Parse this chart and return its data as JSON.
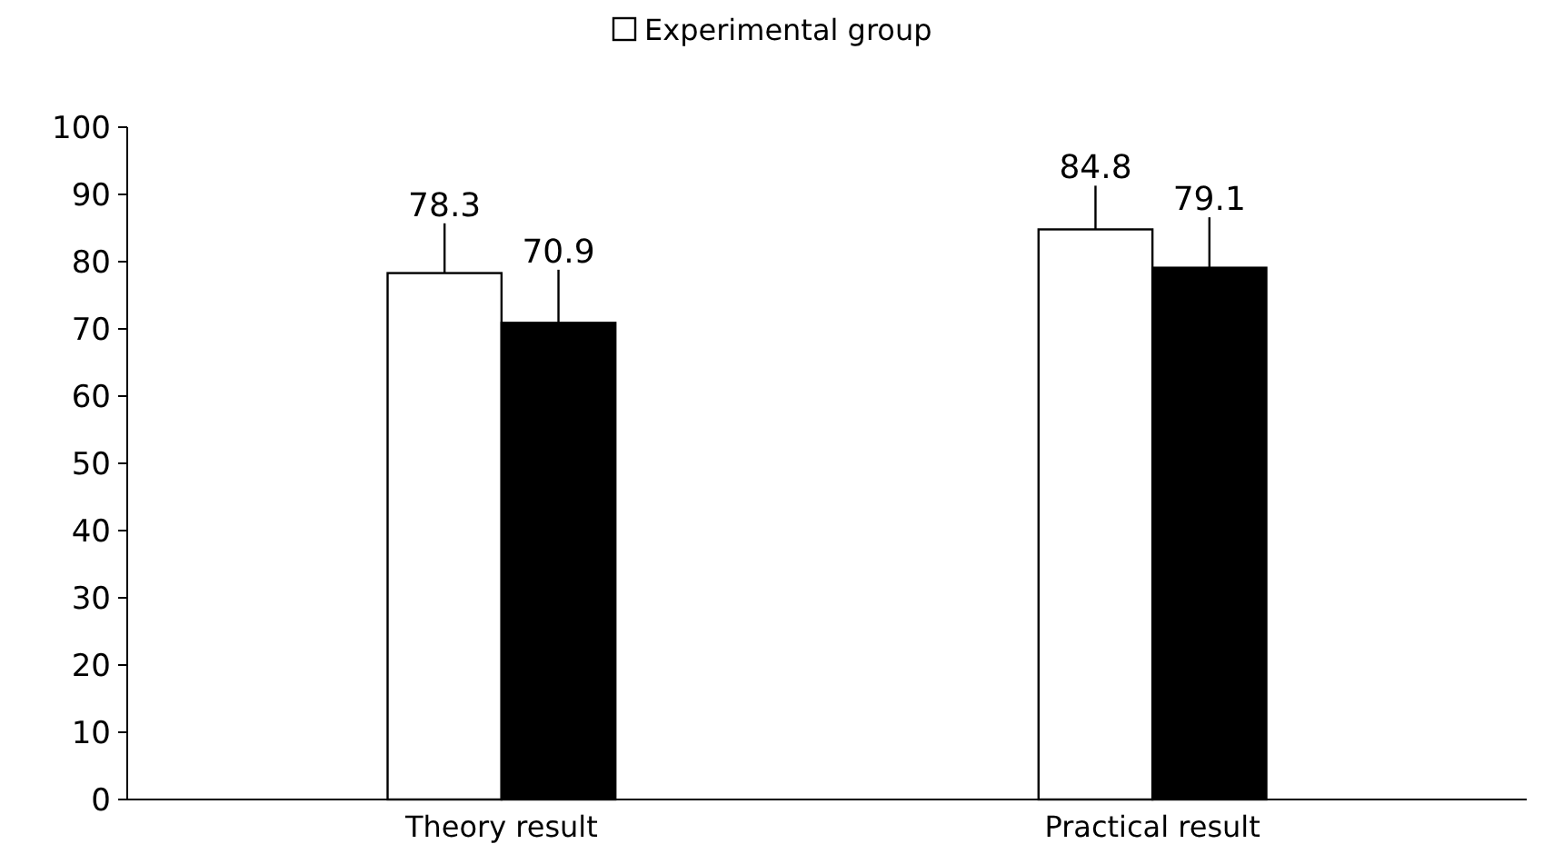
{
  "chart_data": {
    "type": "bar",
    "categories": [
      "Theory result",
      "Practical result"
    ],
    "series": [
      {
        "name": "Experimental group",
        "color": "#ffffff",
        "values": [
          78.3,
          84.8
        ],
        "errors": [
          [
            78.3,
            85.7
          ],
          [
            84.8,
            91.3
          ]
        ]
      },
      {
        "color": "#000000",
        "values": [
          70.9,
          79.1
        ],
        "errors": [
          [
            70.9,
            78.8
          ],
          [
            79.1,
            86.6
          ]
        ]
      }
    ],
    "ylim": [
      0,
      100
    ],
    "yticks": [
      0,
      10,
      20,
      30,
      40,
      50,
      60,
      70,
      80,
      90,
      100
    ],
    "data_labels": true,
    "legend": "top",
    "grid": false
  }
}
